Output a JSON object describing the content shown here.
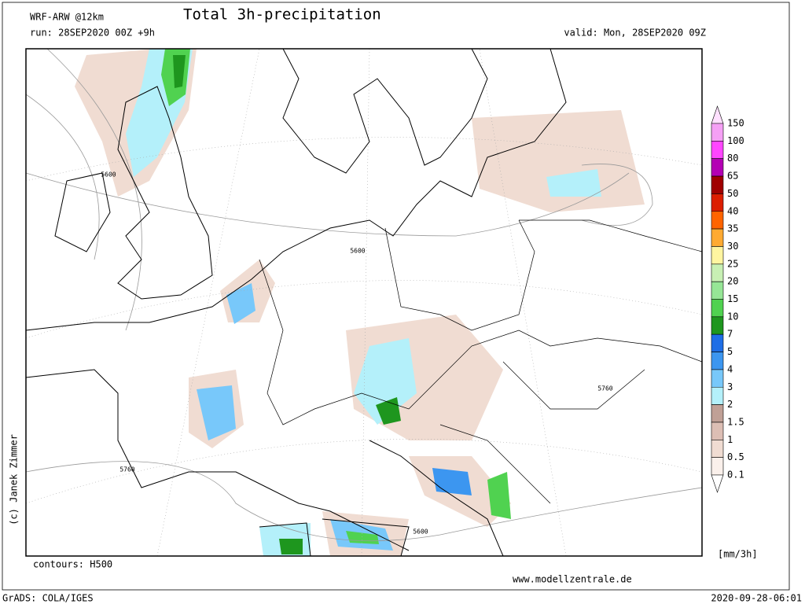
{
  "header": {
    "model": "WRF-ARW @12km",
    "title": "Total 3h-precipitation",
    "run": "run: 28SEP2020 00Z +9h",
    "valid": "valid: Mon, 28SEP2020 09Z",
    "credit": "(c) Janek Zimmer"
  },
  "map": {
    "contour_labels": [
      "5600",
      "5600",
      "5760",
      "5760",
      "5600"
    ]
  },
  "legend": {
    "labels": [
      "150",
      "100",
      "80",
      "65",
      "50",
      "40",
      "35",
      "30",
      "25",
      "20",
      "15",
      "10",
      "7",
      "5",
      "4",
      "3",
      "2",
      "1.5",
      "1",
      "0.5",
      "0.1"
    ],
    "colors": [
      "#ffe0ff",
      "#f5a0f5",
      "#ff46ff",
      "#b400b4",
      "#a00000",
      "#dc1e00",
      "#ff6400",
      "#ffaa32",
      "#fff5a0",
      "#c8f0b4",
      "#96e696",
      "#50d250",
      "#1e961e",
      "#1e6ee6",
      "#3c96f0",
      "#78c8fa",
      "#b4f0fa",
      "#c0a096",
      "#dcbeb4",
      "#f0dcd2",
      "#faf0eb",
      "#ffffff"
    ],
    "unit": "[mm/3h]"
  },
  "footer": {
    "contours": "contours: H500",
    "url": "www.modellzentrale.de",
    "software": "GrADS: COLA/IGES",
    "timestamp": "2020-09-28-06:01"
  }
}
